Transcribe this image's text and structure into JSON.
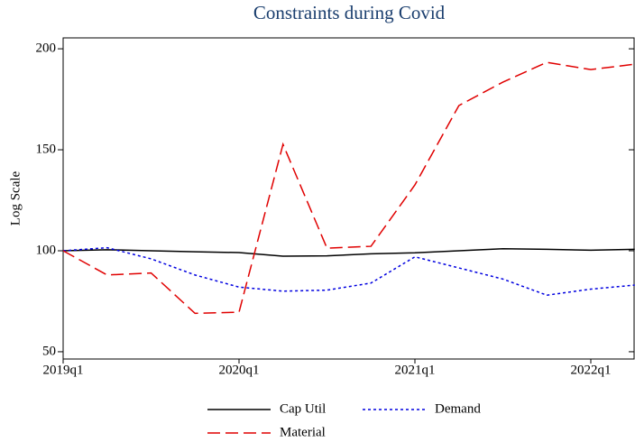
{
  "chart_data": {
    "type": "line",
    "title": "Constraints during Covid",
    "y_label": "Log Scale",
    "categories": [
      "2019q1",
      null,
      null,
      null,
      "2020q1",
      null,
      null,
      null,
      "2021q1",
      null,
      null,
      null,
      "2022q1",
      null
    ],
    "ylim": [
      46.4,
      205.4
    ],
    "yticks": [
      50,
      100,
      150,
      200
    ],
    "grid": false,
    "series": [
      {
        "name": "Cap Util",
        "color": "#000000",
        "style": "solid",
        "values": [
          100,
          100.5,
          100,
          99.5,
          99.1,
          97.3,
          97.5,
          98.5,
          99,
          100,
          101,
          100.7,
          100.3,
          100.7
        ]
      },
      {
        "name": "Demand",
        "color": "#0000e0",
        "style": "dotted",
        "values": [
          100,
          101.5,
          96,
          88,
          82,
          80,
          80.5,
          84,
          97,
          91.5,
          86,
          78,
          81,
          83
        ]
      },
      {
        "name": "Material",
        "color": "#e00000",
        "style": "dashed",
        "values": [
          100,
          88,
          89,
          69,
          69.6,
          152.7,
          101.3,
          102.2,
          132.6,
          171.9,
          183.5,
          193.3,
          189.7,
          192.4
        ]
      }
    ]
  }
}
